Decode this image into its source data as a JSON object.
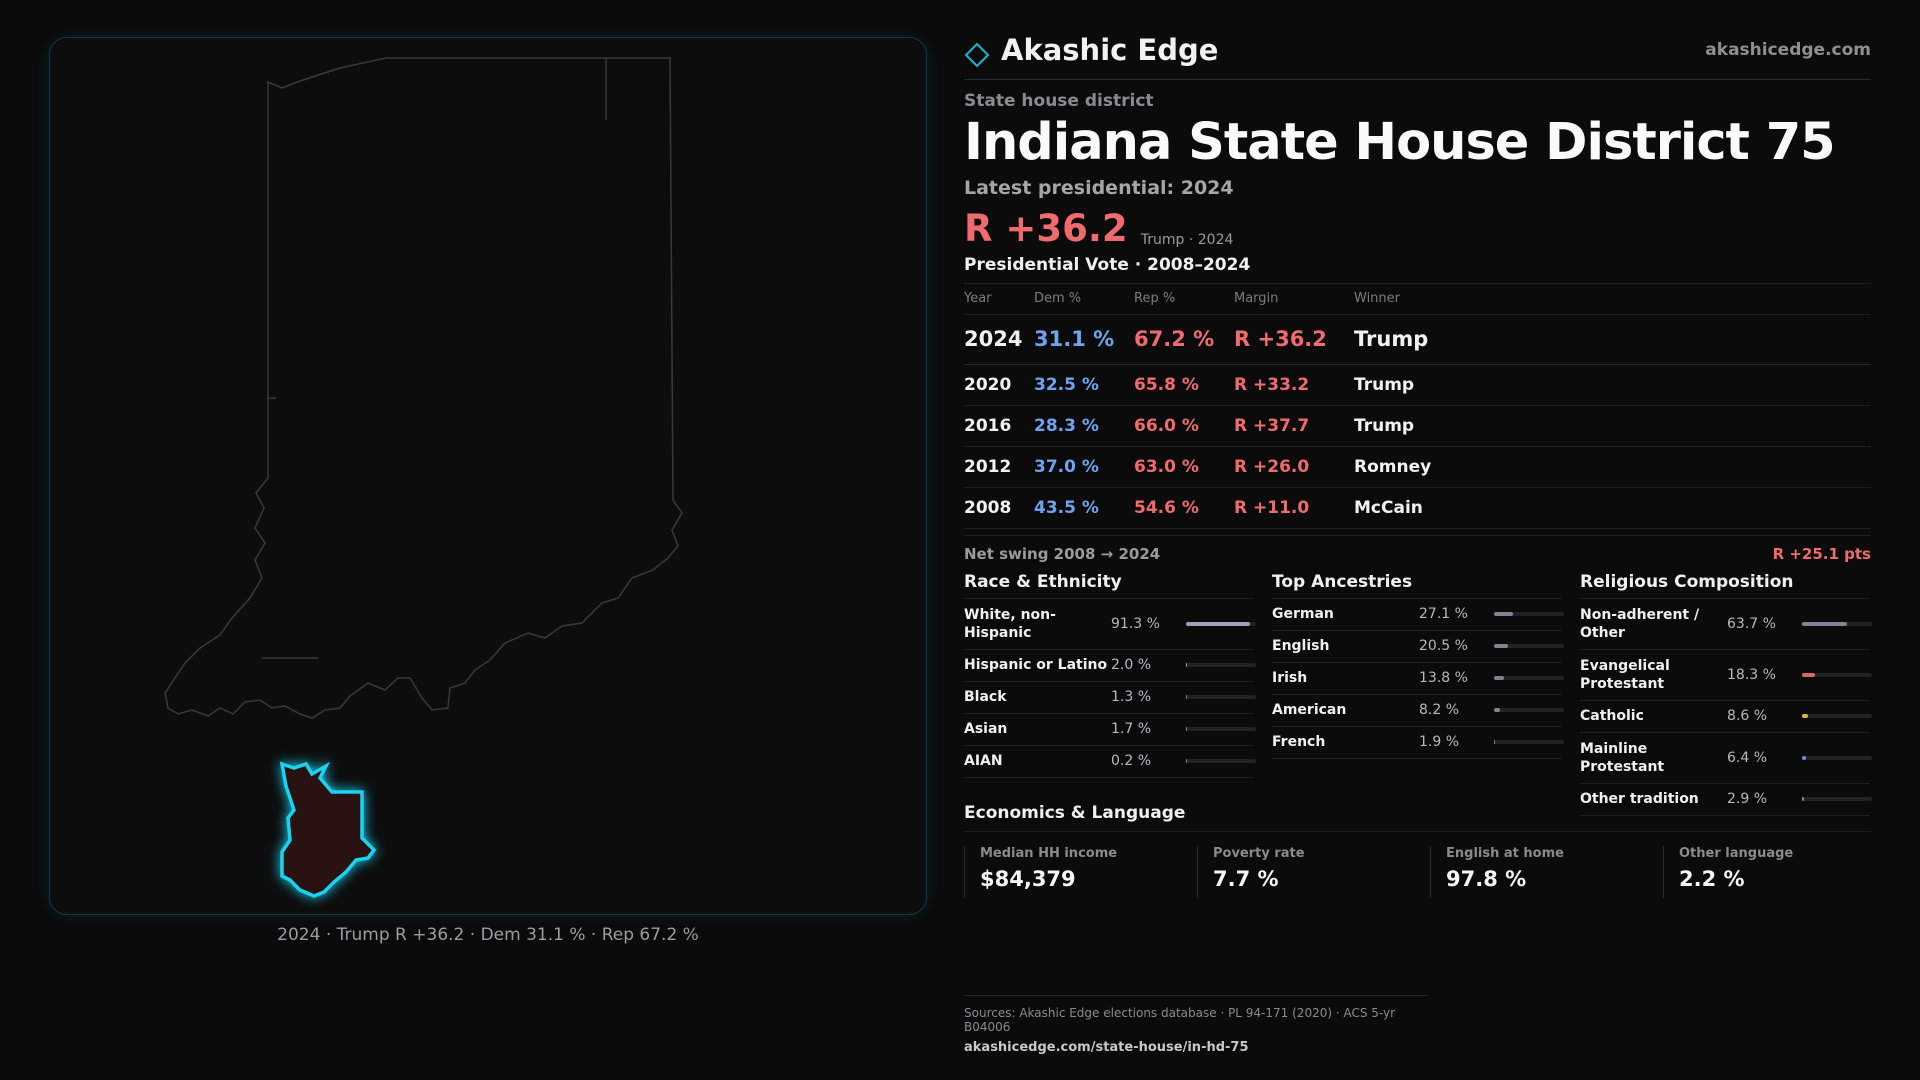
{
  "brand": {
    "name": "Akashic Edge",
    "url": "akashicedge.com",
    "logo_icon": "diamond-logo-icon"
  },
  "district": {
    "kind": "State house district",
    "title": "Indiana State House District 75",
    "latest_label": "Latest presidential: 2024",
    "margin": "R +36.2",
    "margin_sub": "Trump · 2024"
  },
  "vote_table": {
    "title": "Presidential Vote · 2008–2024",
    "headers": {
      "year": "Year",
      "dem": "Dem %",
      "rep": "Rep %",
      "margin": "Margin",
      "winner": "Winner"
    },
    "rows": [
      {
        "year": "2024",
        "dem": "31.1 %",
        "rep": "67.2 %",
        "margin": "R +36.2",
        "winner": "Trump"
      },
      {
        "year": "2020",
        "dem": "32.5 %",
        "rep": "65.8 %",
        "margin": "R +33.2",
        "winner": "Trump"
      },
      {
        "year": "2016",
        "dem": "28.3 %",
        "rep": "66.0 %",
        "margin": "R +37.7",
        "winner": "Trump"
      },
      {
        "year": "2012",
        "dem": "37.0 %",
        "rep": "63.0 %",
        "margin": "R +26.0",
        "winner": "Romney"
      },
      {
        "year": "2008",
        "dem": "43.5 %",
        "rep": "54.6 %",
        "margin": "R +11.0",
        "winner": "McCain"
      }
    ]
  },
  "swing": {
    "label": "Net swing 2008 → 2024",
    "value": "R +25.1 pts"
  },
  "race": {
    "title": "Race & Ethnicity",
    "items": [
      {
        "name": "White, non-Hispanic",
        "value": "91.3 %",
        "fraction": 0.913,
        "color": "#9aa3b4"
      },
      {
        "name": "Hispanic or Latino",
        "value": "2.0 %",
        "fraction": 0.02,
        "color": "#c9a04a"
      },
      {
        "name": "Black",
        "value": "1.3 %",
        "fraction": 0.013,
        "color": "#6f8fd0"
      },
      {
        "name": "Asian",
        "value": "1.7 %",
        "fraction": 0.017,
        "color": "#57b07a"
      },
      {
        "name": "AIAN",
        "value": "0.2 %",
        "fraction": 0.002,
        "color": "#8a8a90"
      }
    ]
  },
  "ancestry": {
    "title": "Top Ancestries",
    "items": [
      {
        "name": "German",
        "value": "27.1 %",
        "fraction": 0.271,
        "color": "#7d8594"
      },
      {
        "name": "English",
        "value": "20.5 %",
        "fraction": 0.205,
        "color": "#7d8594"
      },
      {
        "name": "Irish",
        "value": "13.8 %",
        "fraction": 0.138,
        "color": "#7d8594"
      },
      {
        "name": "American",
        "value": "8.2 %",
        "fraction": 0.082,
        "color": "#7d8594"
      },
      {
        "name": "French",
        "value": "1.9 %",
        "fraction": 0.019,
        "color": "#7d8594"
      }
    ]
  },
  "religion": {
    "title": "Religious Composition",
    "items": [
      {
        "name": "Non-adherent / Other",
        "value": "63.7 %",
        "fraction": 0.637,
        "color": "#7d8594"
      },
      {
        "name": "Evangelical Protestant",
        "value": "18.3 %",
        "fraction": 0.183,
        "color": "#e06468"
      },
      {
        "name": "Catholic",
        "value": "8.6 %",
        "fraction": 0.086,
        "color": "#e0b040"
      },
      {
        "name": "Mainline Protestant",
        "value": "6.4 %",
        "fraction": 0.064,
        "color": "#6f8fd0"
      },
      {
        "name": "Other tradition",
        "value": "2.9 %",
        "fraction": 0.029,
        "color": "#8a8a90"
      }
    ]
  },
  "economics": {
    "title": "Economics & Language",
    "cards": [
      {
        "label": "Median HH income",
        "value": "$84,379"
      },
      {
        "label": "Poverty rate",
        "value": "7.7 %"
      },
      {
        "label": "English at home",
        "value": "97.8 %"
      },
      {
        "label": "Other language",
        "value": "2.2 %"
      }
    ]
  },
  "map": {
    "caption": "2024 · Trump R +36.2 · Dem 31.1 % · Rep 67.2 %",
    "highlight_color": "#19d3f0",
    "district_fill": "#2a1213"
  },
  "sources": {
    "line1": "Sources: Akashic Edge elections database · PL 94-171 (2020) · ACS 5-yr B04006",
    "line2": "akashicedge.com/state-house/in-hd-75"
  }
}
